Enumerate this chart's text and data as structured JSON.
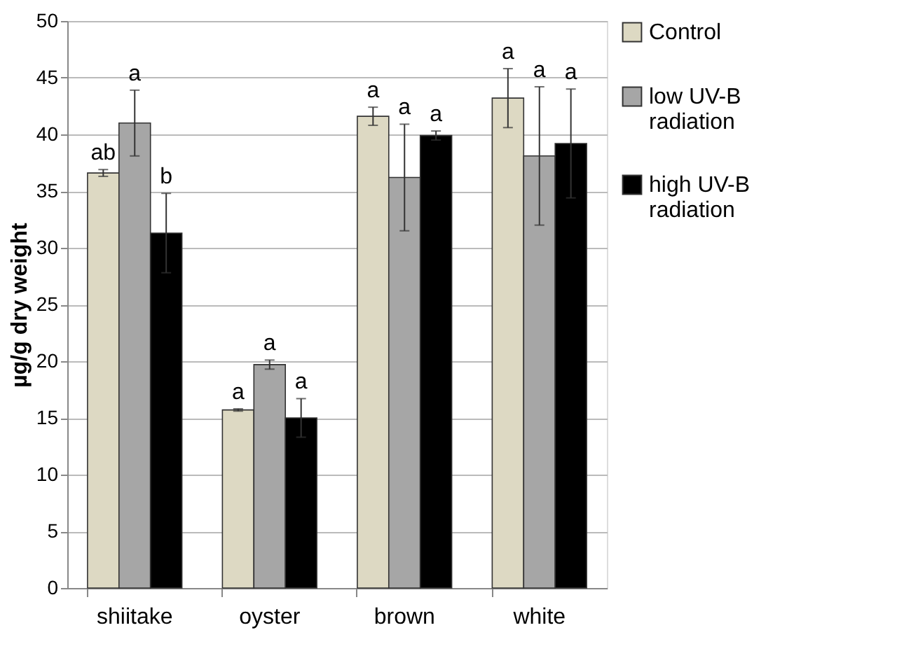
{
  "chart_data": {
    "type": "bar",
    "ylabel": "µg/g dry weight",
    "categories": [
      "shiitake",
      "oyster",
      "brown",
      "white"
    ],
    "series": [
      {
        "name": "Control",
        "color": "#ddd9c3",
        "values": [
          36.6,
          15.7,
          41.6,
          43.2
        ],
        "errors": [
          0.3,
          0.1,
          0.8,
          2.6
        ]
      },
      {
        "name": "low UV-B radiation",
        "color": "#a6a6a6",
        "values": [
          41.0,
          19.7,
          36.2,
          38.1
        ],
        "errors": [
          2.9,
          0.4,
          4.7,
          6.1
        ]
      },
      {
        "name": "high UV-B radiation",
        "color": "#000000",
        "values": [
          31.3,
          15.0,
          39.9,
          39.2
        ],
        "errors": [
          3.5,
          1.7,
          0.4,
          4.8
        ]
      }
    ],
    "ylim": [
      0,
      50
    ],
    "yticks": [
      0,
      5,
      10,
      15,
      20,
      25,
      30,
      35,
      40,
      45,
      50
    ],
    "grid": "y",
    "legend": "right",
    "annotations": [
      "ab",
      "a",
      "b",
      "a",
      "a",
      "a",
      "a",
      "a",
      "a",
      "a",
      "a",
      "a"
    ]
  }
}
